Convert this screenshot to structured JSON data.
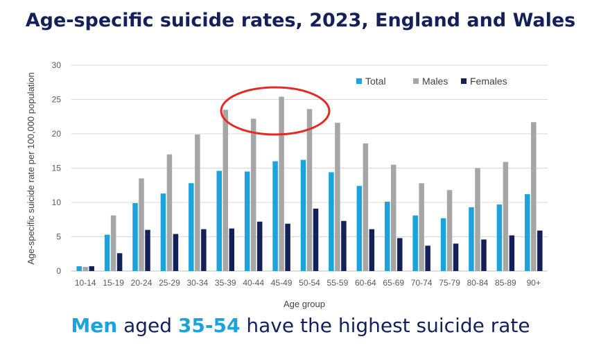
{
  "header": {
    "title": "Age-specific suicide rates, 2023, England and Wales"
  },
  "footer": {
    "subtitle_part1": "Men",
    "subtitle_part2": " aged ",
    "subtitle_part3": "35-54",
    "subtitle_part4": " have the highest suicide rate"
  },
  "colors": {
    "total": "#1aa3dc",
    "males": "#a6a6a6",
    "females": "#14205a",
    "highlight_circle": "#e32a26"
  },
  "chart_data": {
    "type": "bar",
    "title": "",
    "xlabel": "Age group",
    "ylabel": "Age-specific suicide rate per 100,000 population",
    "ylim": [
      0,
      30
    ],
    "yticks": [
      0,
      5,
      10,
      15,
      20,
      25,
      30
    ],
    "grid": true,
    "legend_position": "top-right",
    "categories": [
      "10-14",
      "15-19",
      "20-24",
      "25-29",
      "30-34",
      "35-39",
      "40-44",
      "45-49",
      "50-54",
      "55-59",
      "60-64",
      "65-69",
      "70-74",
      "75-79",
      "80-84",
      "85-89",
      "90+"
    ],
    "series": [
      {
        "name": "Total",
        "values": [
          0.7,
          5.3,
          9.9,
          11.3,
          12.8,
          14.6,
          14.5,
          16.0,
          16.2,
          14.4,
          12.4,
          10.1,
          8.1,
          7.7,
          9.3,
          9.7,
          11.2
        ]
      },
      {
        "name": "Males",
        "values": [
          0.6,
          8.1,
          13.5,
          17.0,
          19.9,
          23.5,
          22.2,
          25.4,
          23.6,
          21.6,
          18.6,
          15.5,
          12.8,
          11.8,
          15.0,
          15.9,
          21.7
        ]
      },
      {
        "name": "Females",
        "values": [
          0.7,
          2.6,
          6.0,
          5.4,
          6.1,
          6.2,
          7.2,
          6.9,
          9.1,
          7.3,
          6.1,
          4.8,
          3.7,
          4.0,
          4.6,
          5.2,
          5.9
        ]
      }
    ]
  }
}
